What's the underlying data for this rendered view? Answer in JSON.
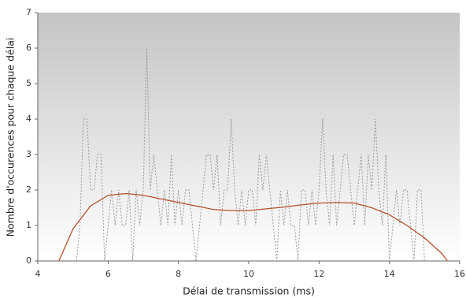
{
  "chart_data": {
    "type": "line",
    "xlabel": "Délai de transmission (ms)",
    "ylabel": "Nombre d'occurences pour chaque délai",
    "xlim": [
      4,
      16
    ],
    "xticks": [
      4,
      6,
      8,
      10,
      12,
      14,
      16
    ],
    "ylim": [
      0,
      7
    ],
    "yticks": [
      0,
      1,
      2,
      3,
      4,
      5,
      6,
      7
    ],
    "series": [
      {
        "color": "#999999",
        "dashed": true,
        "x": [
          5.1,
          5.2,
          5.3,
          5.4,
          5.5,
          5.6,
          5.7,
          5.8,
          5.9,
          6.0,
          6.1,
          6.2,
          6.3,
          6.4,
          6.5,
          6.6,
          6.7,
          6.8,
          6.9,
          7.0,
          7.1,
          7.2,
          7.3,
          7.4,
          7.5,
          7.6,
          7.7,
          7.8,
          7.9,
          8.0,
          8.1,
          8.2,
          8.3,
          8.4,
          8.5,
          8.6,
          8.7,
          8.8,
          8.9,
          9.0,
          9.1,
          9.2,
          9.3,
          9.4,
          9.5,
          9.6,
          9.7,
          9.8,
          9.9,
          10.0,
          10.1,
          10.2,
          10.3,
          10.4,
          10.5,
          10.6,
          10.7,
          10.8,
          10.9,
          11.0,
          11.1,
          11.2,
          11.3,
          11.4,
          11.5,
          11.6,
          11.7,
          11.8,
          11.9,
          12.0,
          12.1,
          12.2,
          12.3,
          12.4,
          12.5,
          12.6,
          12.7,
          12.8,
          12.9,
          13.0,
          13.1,
          13.2,
          13.3,
          13.4,
          13.5,
          13.6,
          13.7,
          13.8,
          13.9,
          14.0,
          14.1,
          14.2,
          14.3,
          14.4,
          14.5,
          14.6,
          14.7,
          14.8,
          14.9,
          15.0
        ],
        "values": [
          0,
          1,
          4,
          4,
          2,
          2,
          3,
          3,
          0,
          1,
          2,
          1,
          2,
          1,
          1,
          2,
          0,
          2,
          1,
          2,
          6,
          2,
          3,
          2,
          1,
          2,
          1,
          3,
          1,
          2,
          1,
          2,
          2,
          1,
          0,
          1,
          2,
          3,
          3,
          2,
          3,
          1,
          2,
          2,
          4,
          2,
          1,
          2,
          1,
          2,
          2,
          1,
          3,
          2,
          3,
          2,
          1,
          0,
          2,
          1,
          2,
          1,
          1,
          0,
          2,
          2,
          1,
          2,
          1,
          2,
          4,
          2,
          1,
          3,
          1,
          2,
          3,
          3,
          2,
          1,
          2,
          3,
          1,
          3,
          2,
          4,
          2,
          1,
          3,
          0,
          1,
          2,
          1,
          2,
          2,
          1,
          0,
          2,
          2,
          0
        ]
      },
      {
        "color": "#b5532a",
        "dashed": false,
        "x": [
          4.6,
          5.0,
          5.5,
          6.0,
          6.5,
          7.0,
          7.5,
          8.0,
          8.5,
          9.0,
          9.5,
          10.0,
          10.5,
          11.0,
          11.5,
          12.0,
          12.5,
          13.0,
          13.5,
          14.0,
          14.5,
          15.0,
          15.5,
          15.65
        ],
        "values": [
          0,
          0.9,
          1.55,
          1.85,
          1.9,
          1.85,
          1.75,
          1.65,
          1.55,
          1.45,
          1.42,
          1.42,
          1.47,
          1.52,
          1.58,
          1.63,
          1.65,
          1.63,
          1.5,
          1.3,
          1.0,
          0.65,
          0.2,
          0
        ]
      }
    ]
  }
}
